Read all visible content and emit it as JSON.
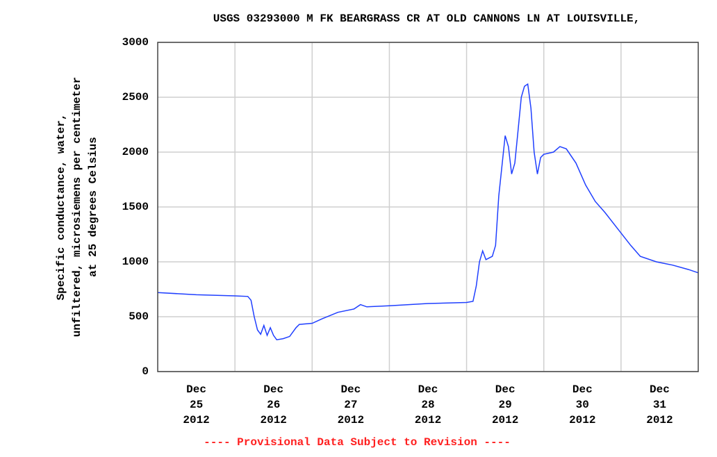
{
  "chart_data": {
    "type": "line",
    "title": "USGS 03293000 M FK BEARGRASS CR AT OLD CANNONS LN AT LOUISVILLE,",
    "ylabel": [
      "Specific conductance, water,",
      "unfiltered, microsiemens per centimeter",
      "at 25 degrees Celsius"
    ],
    "footnote": "---- Provisional Data Subject to Revision ----",
    "xlim": [
      "2012-12-25T00:00",
      "2012-12-31T24:00"
    ],
    "xgrid": [
      "2012-12-26T00:00",
      "2012-12-27T00:00",
      "2012-12-28T00:00",
      "2012-12-29T00:00",
      "2012-12-30T00:00",
      "2012-12-31T00:00"
    ],
    "xticks": [
      {
        "value": "2012-12-25T12:00",
        "label": [
          "Dec",
          "25",
          "2012"
        ]
      },
      {
        "value": "2012-12-26T12:00",
        "label": [
          "Dec",
          "26",
          "2012"
        ]
      },
      {
        "value": "2012-12-27T12:00",
        "label": [
          "Dec",
          "27",
          "2012"
        ]
      },
      {
        "value": "2012-12-28T12:00",
        "label": [
          "Dec",
          "28",
          "2012"
        ]
      },
      {
        "value": "2012-12-29T12:00",
        "label": [
          "Dec",
          "29",
          "2012"
        ]
      },
      {
        "value": "2012-12-30T12:00",
        "label": [
          "Dec",
          "30",
          "2012"
        ]
      },
      {
        "value": "2012-12-31T12:00",
        "label": [
          "Dec",
          "31",
          "2012"
        ]
      }
    ],
    "ylim": [
      0,
      3000
    ],
    "yticks": [
      0,
      500,
      1000,
      1500,
      2000,
      2500,
      3000
    ],
    "grid": true,
    "x": [
      "2012-12-25T00:00",
      "2012-12-25T12:00",
      "2012-12-26T00:00",
      "2012-12-26T04:00",
      "2012-12-26T05:00",
      "2012-12-26T06:00",
      "2012-12-26T07:00",
      "2012-12-26T08:00",
      "2012-12-26T09:00",
      "2012-12-26T10:00",
      "2012-12-26T11:00",
      "2012-12-26T12:00",
      "2012-12-26T13:00",
      "2012-12-26T15:00",
      "2012-12-26T17:00",
      "2012-12-26T19:00",
      "2012-12-26T20:00",
      "2012-12-27T00:00",
      "2012-12-27T03:00",
      "2012-12-27T08:00",
      "2012-12-27T13:00",
      "2012-12-27T15:00",
      "2012-12-27T17:00",
      "2012-12-28T00:00",
      "2012-12-28T12:00",
      "2012-12-29T00:00",
      "2012-12-29T02:00",
      "2012-12-29T03:00",
      "2012-12-29T04:00",
      "2012-12-29T05:00",
      "2012-12-29T06:00",
      "2012-12-29T08:00",
      "2012-12-29T09:00",
      "2012-12-29T10:00",
      "2012-12-29T12:00",
      "2012-12-29T13:00",
      "2012-12-29T14:00",
      "2012-12-29T15:00",
      "2012-12-29T16:00",
      "2012-12-29T17:00",
      "2012-12-29T18:00",
      "2012-12-29T19:00",
      "2012-12-29T20:00",
      "2012-12-29T21:00",
      "2012-12-29T22:00",
      "2012-12-29T23:00",
      "2012-12-30T00:00",
      "2012-12-30T03:00",
      "2012-12-30T05:00",
      "2012-12-30T07:00",
      "2012-12-30T10:00",
      "2012-12-30T13:00",
      "2012-12-30T16:00",
      "2012-12-30T19:00",
      "2012-12-30T23:00",
      "2012-12-31T03:00",
      "2012-12-31T06:00",
      "2012-12-31T11:00",
      "2012-12-31T16:00",
      "2012-12-31T21:00",
      "2012-12-31T24:00"
    ],
    "series": [
      {
        "color": "#1f3fff",
        "values": [
          720,
          700,
          690,
          685,
          650,
          500,
          380,
          340,
          420,
          330,
          400,
          330,
          290,
          300,
          320,
          400,
          430,
          440,
          480,
          540,
          570,
          610,
          590,
          600,
          620,
          630,
          640,
          780,
          1000,
          1100,
          1020,
          1050,
          1150,
          1600,
          2150,
          2050,
          1800,
          1900,
          2200,
          2500,
          2600,
          2620,
          2400,
          2000,
          1800,
          1950,
          1980,
          2000,
          2050,
          2030,
          1900,
          1700,
          1550,
          1450,
          1300,
          1150,
          1050,
          1000,
          970,
          930,
          900
        ]
      }
    ]
  }
}
